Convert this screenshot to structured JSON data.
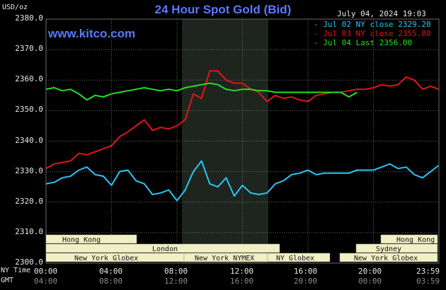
{
  "header": {
    "title": "24 Hour Spot Gold (Bid)",
    "unit": "USD/oz",
    "timestamp": "July 04, 2024 19:03",
    "brand": "www.kitco.com"
  },
  "legend": [
    {
      "label": "- Jul 02 NY close 2329.20",
      "color": "#29c5f6"
    },
    {
      "label": "- Jul 03 NY close 2355.80",
      "color": "#e0161b"
    },
    {
      "label": "- Jul 04 Last 2356.00",
      "color": "#22e022"
    }
  ],
  "axes": {
    "x_primary_name": "NY Time",
    "x_secondary_name": "GMT",
    "x_ticks": [
      "00:00",
      "04:00",
      "08:00",
      "12:00",
      "16:00",
      "20:00",
      "23:59"
    ],
    "x_ticks_gmt": [
      "04:00",
      "08:00",
      "12:00",
      "16:00",
      "20:00",
      "00:00",
      "03:59"
    ]
  },
  "sessions": [
    {
      "label": "Hong Kong",
      "row": 0
    },
    {
      "label": "Hong Kong",
      "row": 0
    },
    {
      "label": "London",
      "row": 1
    },
    {
      "label": "Sydney",
      "row": 1
    },
    {
      "label": "New York Globex",
      "row": 2
    },
    {
      "label": "New York NYMEX",
      "row": 2
    },
    {
      "label": "NY Globex",
      "row": 2
    },
    {
      "label": "New York Globex",
      "row": 2
    }
  ],
  "colors": {
    "background": "#000000",
    "plot_background": "#000000",
    "grid": "#6a6a6a",
    "nymex_shade": "#1e251e",
    "accent_title": "#5b78ff",
    "session_box": "#f1efc6",
    "session_text": "#111111"
  },
  "chart_data": {
    "type": "line",
    "title": "24 Hour Spot Gold (Bid)",
    "ylabel": "USD/oz",
    "xlabel": "NY Time",
    "ylim": [
      2300,
      2380
    ],
    "xlim": [
      0,
      24
    ],
    "y_ticks": [
      2300.0,
      2310.0,
      2320.0,
      2330.0,
      2340.0,
      2350.0,
      2360.0,
      2370.0,
      2380.0
    ],
    "y_tick_labels": [
      "2300.0",
      "2310.0",
      "2320.0",
      "2330.0",
      "2340.0",
      "2350.0",
      "2360.0",
      "2370.0",
      "2380.0"
    ],
    "grid": true,
    "legend_position": "top-right",
    "series": [
      {
        "name": "Jul 02 NY close 2329.20",
        "color": "#29c5f6",
        "x": [
          0,
          0.5,
          1,
          1.5,
          2,
          2.5,
          3,
          3.5,
          4,
          4.5,
          5,
          5.5,
          6,
          6.5,
          7,
          7.5,
          8,
          8.5,
          9,
          9.5,
          10,
          10.5,
          11,
          11.5,
          12,
          12.5,
          13,
          13.5,
          14,
          14.5,
          15,
          15.5,
          16,
          16.5,
          17,
          17.5,
          18,
          18.5,
          19,
          19.5,
          20,
          20.5,
          21,
          21.5,
          22,
          22.5,
          23,
          23.5,
          23.98
        ],
        "values": [
          2326.0,
          2326.5,
          2328.0,
          2328.5,
          2330.5,
          2331.5,
          2329.0,
          2328.5,
          2325.5,
          2330.0,
          2330.5,
          2327.0,
          2326.0,
          2322.5,
          2323.0,
          2324.0,
          2320.5,
          2324.0,
          2330.0,
          2333.5,
          2326.0,
          2325.0,
          2328.0,
          2322.0,
          2325.5,
          2323.0,
          2322.5,
          2323.0,
          2326.0,
          2327.0,
          2329.0,
          2329.5,
          2330.5,
          2329.0,
          2329.5,
          2329.5,
          2329.5,
          2329.5,
          2330.5,
          2330.5,
          2330.5,
          2331.5,
          2332.5,
          2331.0,
          2331.5,
          2329.0,
          2328.0,
          2330.0,
          2332.0
        ]
      },
      {
        "name": "Jul 03 NY close 2355.80",
        "color": "#e0161b",
        "x": [
          0,
          0.5,
          1,
          1.5,
          2,
          2.5,
          3,
          3.5,
          4,
          4.5,
          5,
          5.5,
          6,
          6.5,
          7,
          7.5,
          8,
          8.5,
          9,
          9.5,
          10,
          10.5,
          11,
          11.5,
          12,
          12.5,
          13,
          13.5,
          14,
          14.5,
          15,
          15.5,
          16,
          16.5,
          17,
          17.5,
          18,
          18.5,
          19,
          19.5,
          20,
          20.5,
          21,
          21.5,
          22,
          22.5,
          23,
          23.5,
          23.98
        ],
        "values": [
          2331.0,
          2332.5,
          2333.0,
          2333.5,
          2336.0,
          2335.5,
          2336.5,
          2337.5,
          2338.5,
          2341.5,
          2343.0,
          2345.0,
          2347.0,
          2343.5,
          2344.5,
          2344.0,
          2345.0,
          2347.0,
          2355.5,
          2354.0,
          2363.0,
          2363.0,
          2360.0,
          2359.0,
          2359.0,
          2357.0,
          2356.0,
          2353.0,
          2355.0,
          2354.0,
          2354.5,
          2353.5,
          2353.0,
          2355.0,
          2355.5,
          2356.0,
          2356.0,
          2356.5,
          2357.0,
          2357.0,
          2357.5,
          2358.5,
          2358.0,
          2358.5,
          2361.0,
          2360.0,
          2357.0,
          2358.0,
          2357.0
        ]
      },
      {
        "name": "Jul 04 Last 2356.00",
        "color": "#22e022",
        "x": [
          0,
          0.5,
          1,
          1.5,
          2,
          2.5,
          3,
          3.5,
          4,
          4.5,
          5,
          5.5,
          6,
          6.5,
          7,
          7.5,
          8,
          8.5,
          9,
          9.5,
          10,
          10.5,
          11,
          11.5,
          12,
          12.5,
          13,
          13.5,
          14,
          14.5,
          15,
          15.5,
          16,
          16.5,
          17,
          17.5,
          18,
          18.5,
          19
        ],
        "values": [
          2357.0,
          2357.5,
          2356.5,
          2357.0,
          2355.5,
          2353.5,
          2355.0,
          2354.5,
          2355.5,
          2356.0,
          2356.5,
          2357.0,
          2357.5,
          2357.0,
          2356.5,
          2357.0,
          2356.5,
          2357.5,
          2358.0,
          2358.5,
          2359.0,
          2358.5,
          2357.0,
          2356.5,
          2357.0,
          2357.0,
          2356.5,
          2356.5,
          2356.0,
          2356.0,
          2356.0,
          2356.0,
          2356.0,
          2356.0,
          2356.0,
          2356.0,
          2356.0,
          2354.5,
          2356.0
        ]
      }
    ]
  }
}
